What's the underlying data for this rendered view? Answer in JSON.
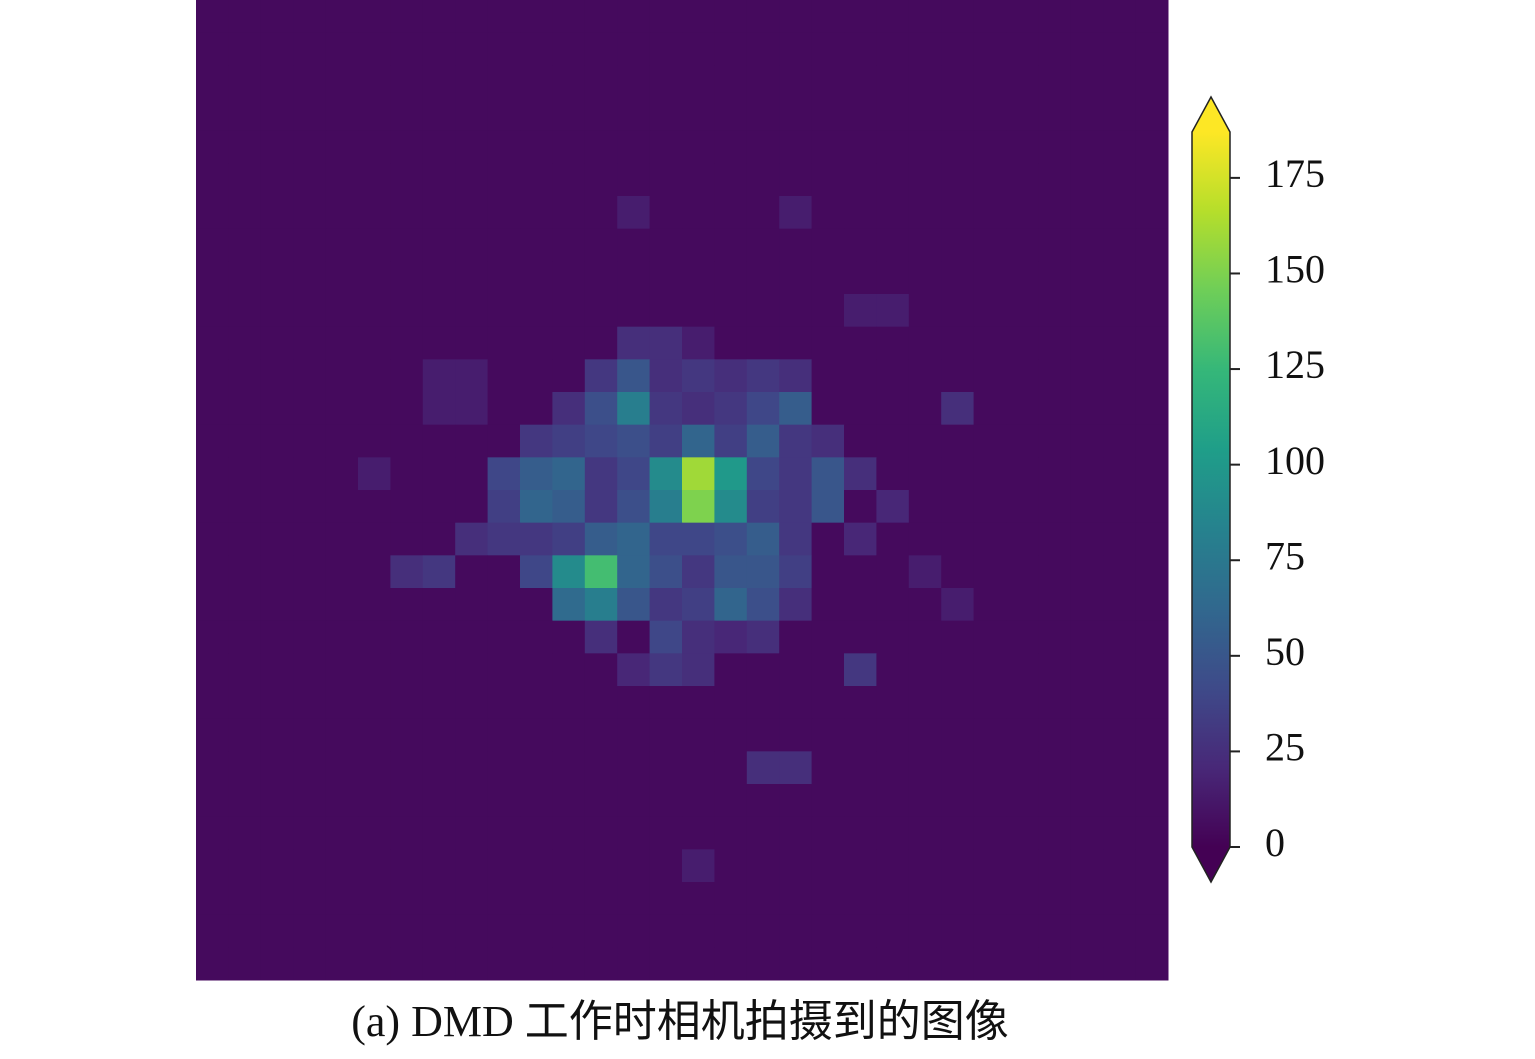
{
  "chart_data": {
    "type": "heatmap",
    "colormap": "viridis",
    "caption": "(a) DMD 工作时相机拍摄到的图像",
    "z": [
      [
        5,
        5,
        5,
        5,
        5,
        5,
        5,
        5,
        5,
        5,
        5,
        5,
        5,
        5,
        5,
        5,
        5,
        5,
        5,
        5,
        5,
        5,
        5,
        5,
        5,
        5,
        5,
        5,
        5,
        5
      ],
      [
        5,
        5,
        5,
        5,
        5,
        5,
        5,
        5,
        5,
        5,
        5,
        5,
        5,
        5,
        5,
        5,
        5,
        5,
        5,
        5,
        5,
        5,
        5,
        5,
        5,
        5,
        5,
        5,
        5,
        5
      ],
      [
        5,
        5,
        5,
        5,
        5,
        5,
        5,
        5,
        5,
        5,
        5,
        5,
        5,
        5,
        5,
        5,
        5,
        5,
        5,
        5,
        5,
        5,
        5,
        5,
        5,
        5,
        5,
        5,
        5,
        5
      ],
      [
        5,
        5,
        5,
        5,
        5,
        5,
        5,
        5,
        5,
        5,
        5,
        5,
        5,
        5,
        5,
        5,
        5,
        5,
        5,
        5,
        5,
        5,
        5,
        5,
        5,
        5,
        5,
        5,
        5,
        5
      ],
      [
        5,
        5,
        5,
        5,
        5,
        5,
        5,
        5,
        5,
        5,
        5,
        5,
        5,
        5,
        5,
        5,
        5,
        5,
        5,
        5,
        5,
        5,
        5,
        5,
        5,
        5,
        5,
        5,
        5,
        5
      ],
      [
        5,
        5,
        5,
        5,
        5,
        5,
        5,
        5,
        5,
        5,
        5,
        5,
        5,
        5,
        5,
        5,
        5,
        5,
        5,
        5,
        5,
        5,
        5,
        5,
        5,
        5,
        5,
        5,
        5,
        5
      ],
      [
        5,
        5,
        5,
        5,
        5,
        5,
        5,
        5,
        5,
        5,
        5,
        5,
        5,
        15,
        5,
        5,
        5,
        5,
        15,
        5,
        5,
        5,
        5,
        5,
        5,
        5,
        5,
        5,
        5,
        5
      ],
      [
        5,
        5,
        5,
        5,
        5,
        5,
        5,
        5,
        5,
        5,
        5,
        5,
        5,
        5,
        5,
        5,
        5,
        5,
        5,
        5,
        5,
        5,
        5,
        5,
        5,
        5,
        5,
        5,
        5,
        5
      ],
      [
        5,
        5,
        5,
        5,
        5,
        5,
        5,
        5,
        5,
        5,
        5,
        5,
        5,
        5,
        5,
        5,
        5,
        5,
        5,
        5,
        5,
        5,
        5,
        5,
        5,
        5,
        5,
        5,
        5,
        5
      ],
      [
        5,
        5,
        5,
        5,
        5,
        5,
        5,
        5,
        5,
        5,
        5,
        5,
        5,
        5,
        5,
        5,
        5,
        5,
        5,
        5,
        15,
        15,
        5,
        5,
        5,
        5,
        5,
        5,
        5,
        5
      ],
      [
        5,
        5,
        5,
        5,
        5,
        5,
        5,
        5,
        5,
        5,
        5,
        5,
        5,
        25,
        25,
        15,
        5,
        5,
        5,
        5,
        5,
        5,
        5,
        5,
        5,
        5,
        5,
        5,
        5,
        5
      ],
      [
        5,
        5,
        5,
        5,
        5,
        5,
        5,
        15,
        15,
        5,
        5,
        5,
        30,
        50,
        25,
        30,
        25,
        30,
        25,
        5,
        5,
        5,
        5,
        5,
        5,
        5,
        5,
        5,
        5,
        5
      ],
      [
        5,
        5,
        5,
        5,
        5,
        5,
        5,
        15,
        15,
        5,
        5,
        25,
        45,
        80,
        30,
        25,
        30,
        40,
        55,
        5,
        5,
        5,
        5,
        25,
        5,
        5,
        5,
        5,
        5,
        5
      ],
      [
        5,
        5,
        5,
        5,
        5,
        5,
        5,
        5,
        5,
        5,
        30,
        35,
        40,
        45,
        35,
        60,
        35,
        55,
        30,
        25,
        5,
        5,
        5,
        5,
        5,
        5,
        5,
        5,
        5,
        5
      ],
      [
        5,
        5,
        5,
        5,
        5,
        15,
        5,
        5,
        5,
        40,
        55,
        60,
        30,
        40,
        90,
        160,
        100,
        40,
        30,
        50,
        25,
        5,
        5,
        5,
        5,
        5,
        5,
        5,
        5,
        5
      ],
      [
        5,
        5,
        5,
        5,
        5,
        5,
        5,
        5,
        5,
        35,
        60,
        55,
        30,
        45,
        80,
        150,
        90,
        35,
        30,
        50,
        5,
        20,
        5,
        5,
        5,
        5,
        5,
        5,
        5,
        5
      ],
      [
        5,
        5,
        5,
        5,
        5,
        5,
        5,
        5,
        25,
        30,
        30,
        35,
        55,
        60,
        40,
        40,
        45,
        55,
        30,
        5,
        20,
        5,
        5,
        5,
        5,
        5,
        5,
        5,
        5,
        5
      ],
      [
        5,
        5,
        5,
        5,
        5,
        5,
        25,
        30,
        5,
        5,
        40,
        90,
        130,
        60,
        45,
        30,
        50,
        50,
        35,
        5,
        5,
        5,
        15,
        5,
        5,
        5,
        5,
        5,
        5,
        5
      ],
      [
        5,
        5,
        5,
        5,
        5,
        5,
        5,
        5,
        5,
        5,
        5,
        65,
        80,
        50,
        30,
        35,
        60,
        45,
        25,
        5,
        5,
        5,
        5,
        15,
        5,
        5,
        5,
        5,
        5,
        5
      ],
      [
        5,
        5,
        5,
        5,
        5,
        5,
        5,
        5,
        5,
        5,
        5,
        5,
        25,
        5,
        40,
        25,
        20,
        25,
        5,
        5,
        5,
        5,
        5,
        5,
        5,
        5,
        5,
        5,
        5,
        5
      ],
      [
        5,
        5,
        5,
        5,
        5,
        5,
        5,
        5,
        5,
        5,
        5,
        5,
        5,
        20,
        30,
        25,
        5,
        5,
        5,
        5,
        30,
        5,
        5,
        5,
        5,
        5,
        5,
        5,
        5,
        5
      ],
      [
        5,
        5,
        5,
        5,
        5,
        5,
        5,
        5,
        5,
        5,
        5,
        5,
        5,
        5,
        5,
        5,
        5,
        5,
        5,
        5,
        5,
        5,
        5,
        5,
        5,
        5,
        5,
        5,
        5,
        5
      ],
      [
        5,
        5,
        5,
        5,
        5,
        5,
        5,
        5,
        5,
        5,
        5,
        5,
        5,
        5,
        5,
        5,
        5,
        5,
        5,
        5,
        5,
        5,
        5,
        5,
        5,
        5,
        5,
        5,
        5,
        5
      ],
      [
        5,
        5,
        5,
        5,
        5,
        5,
        5,
        5,
        5,
        5,
        5,
        5,
        5,
        5,
        5,
        5,
        5,
        25,
        25,
        5,
        5,
        5,
        5,
        5,
        5,
        5,
        5,
        5,
        5,
        5
      ],
      [
        5,
        5,
        5,
        5,
        5,
        5,
        5,
        5,
        5,
        5,
        5,
        5,
        5,
        5,
        5,
        5,
        5,
        5,
        5,
        5,
        5,
        5,
        5,
        5,
        5,
        5,
        5,
        5,
        5,
        5
      ],
      [
        5,
        5,
        5,
        5,
        5,
        5,
        5,
        5,
        5,
        5,
        5,
        5,
        5,
        5,
        5,
        5,
        5,
        5,
        5,
        5,
        5,
        5,
        5,
        5,
        5,
        5,
        5,
        5,
        5,
        5
      ],
      [
        5,
        5,
        5,
        5,
        5,
        5,
        5,
        5,
        5,
        5,
        5,
        5,
        5,
        5,
        5,
        15,
        5,
        5,
        5,
        5,
        5,
        5,
        5,
        5,
        5,
        5,
        5,
        5,
        5,
        5
      ],
      [
        5,
        5,
        5,
        5,
        5,
        5,
        5,
        5,
        5,
        5,
        5,
        5,
        5,
        5,
        5,
        5,
        5,
        5,
        5,
        5,
        5,
        5,
        5,
        5,
        5,
        5,
        5,
        5,
        5,
        5
      ],
      [
        5,
        5,
        5,
        5,
        5,
        5,
        5,
        5,
        5,
        5,
        5,
        5,
        5,
        5,
        5,
        5,
        5,
        5,
        5,
        5,
        5,
        5,
        5,
        5,
        5,
        5,
        5,
        5,
        5,
        5
      ],
      [
        5,
        5,
        5,
        5,
        5,
        5,
        5,
        5,
        5,
        5,
        5,
        5,
        5,
        5,
        5,
        5,
        5,
        5,
        5,
        5,
        5,
        5,
        5,
        5,
        5,
        5,
        5,
        5,
        5,
        5
      ]
    ],
    "clim": [
      0,
      187
    ],
    "cticks": [
      0,
      25,
      50,
      75,
      100,
      125,
      150,
      175
    ],
    "extend": "both"
  }
}
